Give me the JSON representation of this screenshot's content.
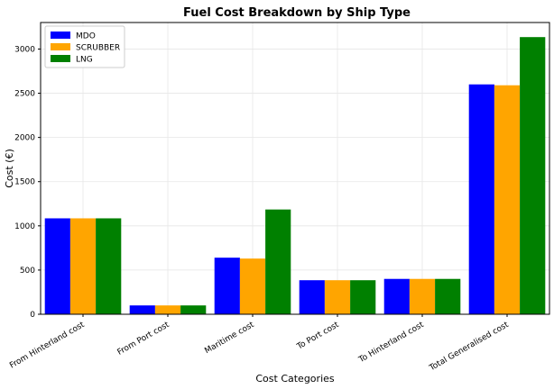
{
  "chart_data": {
    "type": "bar",
    "title": "Fuel Cost Breakdown by Ship Type",
    "xlabel": "Cost Categories",
    "ylabel": "Cost (€)",
    "categories": [
      "From Hinterland cost",
      "From Port cost",
      "Maritime cost",
      "To Port cost",
      "To Hinterland cost",
      "Total Generalised cost"
    ],
    "series": [
      {
        "name": "MDO",
        "color": "#0000ff",
        "values": [
          1085,
          100,
          640,
          385,
          400,
          2600
        ]
      },
      {
        "name": "SCRUBBER",
        "color": "#ffa500",
        "values": [
          1085,
          100,
          630,
          385,
          400,
          2590
        ]
      },
      {
        "name": "LNG",
        "color": "#008000",
        "values": [
          1085,
          100,
          1185,
          385,
          400,
          3135
        ]
      }
    ],
    "ylim": [
      0,
      3300
    ],
    "yticks": [
      0,
      500,
      1000,
      1500,
      2000,
      2500,
      3000
    ],
    "grid": true,
    "legend_position": "top-left"
  }
}
